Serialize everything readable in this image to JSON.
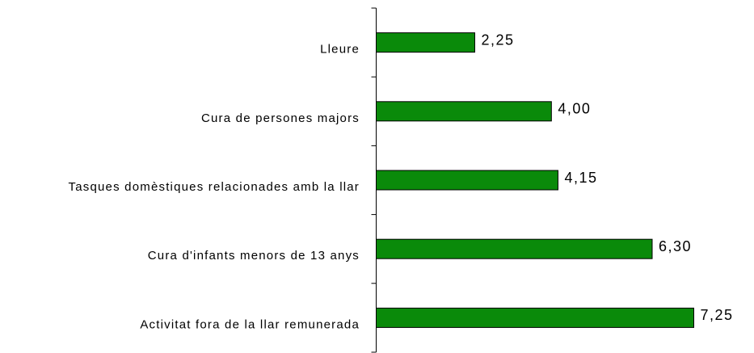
{
  "chart_data": {
    "type": "bar",
    "orientation": "horizontal",
    "categories": [
      "Lleure",
      "Cura de persones majors",
      "Tasques domèstiques relacionades amb la llar",
      "Cura d'infants menors de 13 anys",
      "Activitat fora de la llar remunerada"
    ],
    "values": [
      2.25,
      4.0,
      4.15,
      6.3,
      7.25
    ],
    "value_labels": [
      "2,25",
      "4,00",
      "4,15",
      "6,30",
      "7,25"
    ],
    "color": "#0a8a0a"
  }
}
